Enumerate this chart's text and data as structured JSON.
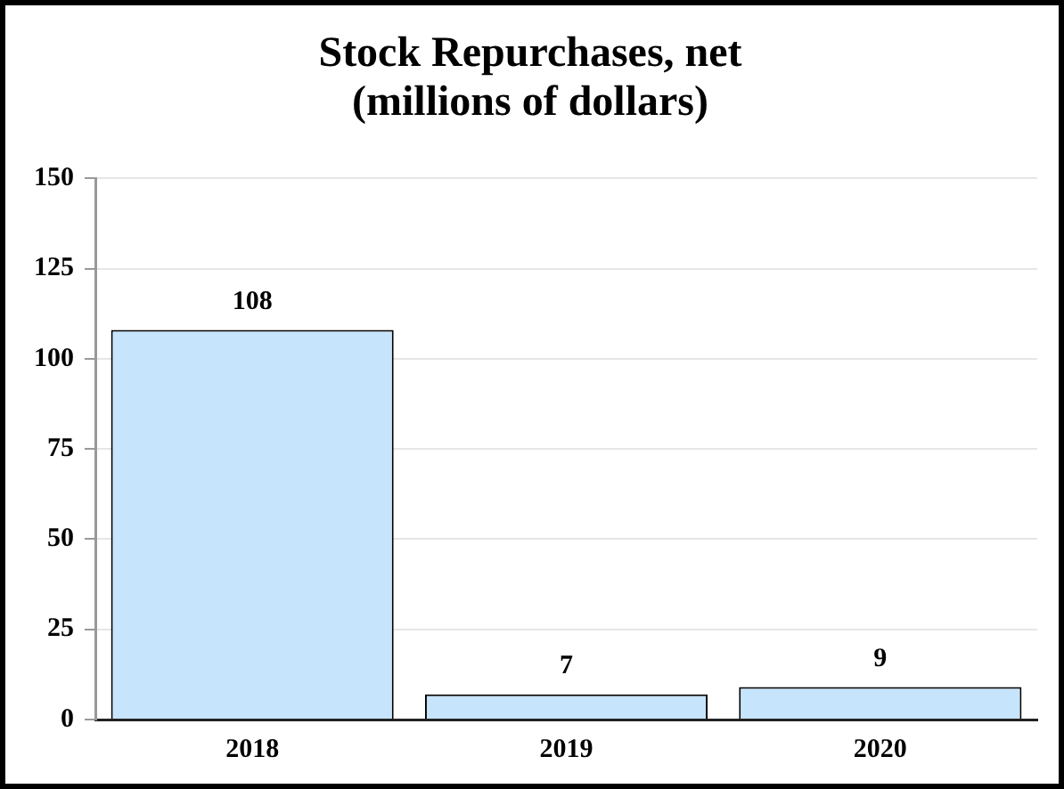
{
  "chart_data": {
    "type": "bar",
    "title": "Stock Repurchases, net",
    "subtitle": "(millions of dollars)",
    "categories": [
      "2018",
      "2019",
      "2020"
    ],
    "values": [
      108,
      7,
      9
    ],
    "color": "#c6e4fb",
    "ylim": [
      0,
      150
    ],
    "yticks": [
      0,
      25,
      50,
      75,
      100,
      125,
      150
    ],
    "grid": "y",
    "data_labels": true,
    "legend": false
  }
}
